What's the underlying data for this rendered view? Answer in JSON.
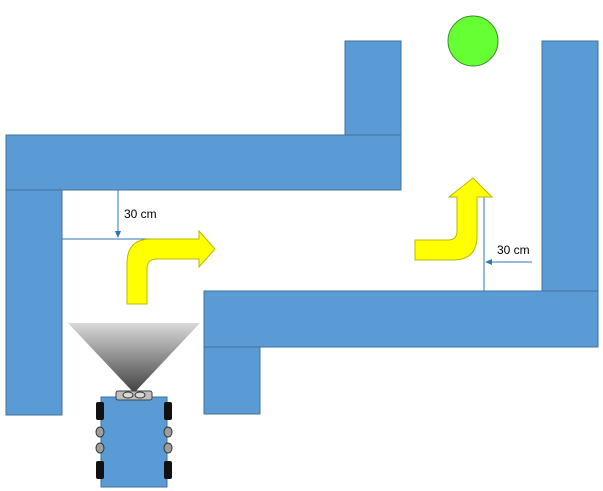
{
  "colors": {
    "wall": "#5b9bd5",
    "wall_outline": "#41719c",
    "goal": "#66ff33",
    "goal_outline": "#3a8a2a",
    "turn_arrow": "#ffff00",
    "dimension_line": "#2e75b6",
    "robot_body": "#5b9bd5",
    "wheel": "#111111",
    "sensor_cone_top": "#d9d9d9",
    "sensor_cone_bottom": "#404040"
  },
  "measurements": {
    "left_gap_label": "30 cm",
    "right_gap_label": "30 cm"
  },
  "icons": {
    "goal": "green-circle-icon",
    "left_turn_arrow": "right-turn-arrow-icon",
    "right_turn_arrow": "up-turn-arrow-icon",
    "robot": "robot-car-icon",
    "sensor": "ultrasonic-sensor-cone-icon"
  }
}
